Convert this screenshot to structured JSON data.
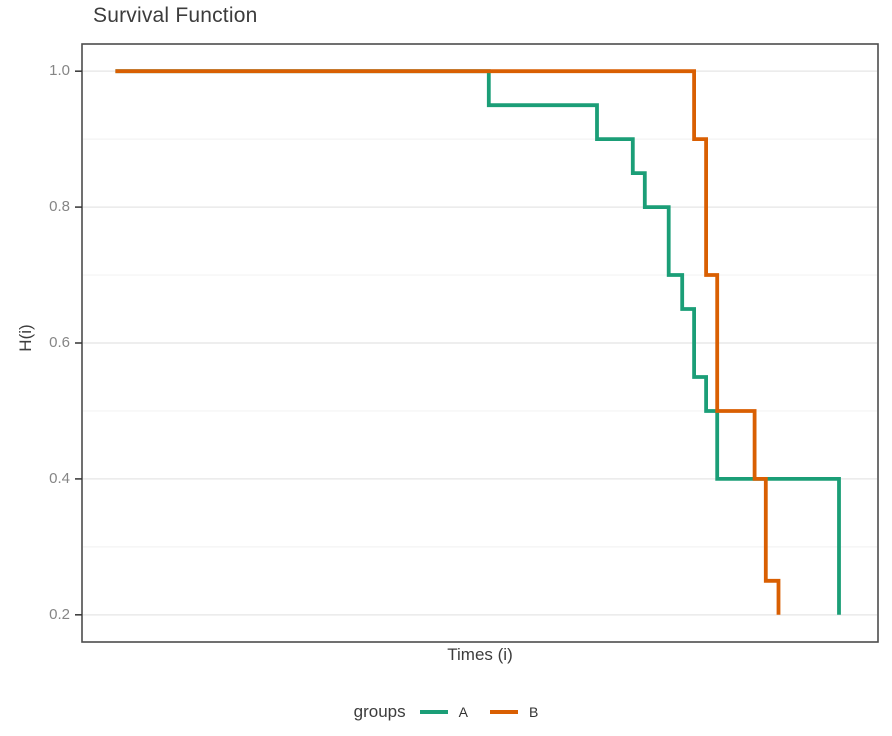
{
  "title": "Survival Function",
  "axes": {
    "x": {
      "label": "Times (i)",
      "tick_labels": []
    },
    "y": {
      "label": "H(i)",
      "ticks": [
        {
          "label": "0.2",
          "value": 0.2
        },
        {
          "label": "0.4",
          "value": 0.4
        },
        {
          "label": "0.6",
          "value": 0.6
        },
        {
          "label": "0.8",
          "value": 0.8
        },
        {
          "label": "1.0",
          "value": 1.0
        }
      ],
      "minor_gridlines": [
        0.3,
        0.5,
        0.7,
        0.9
      ],
      "range": [
        0.16,
        1.04
      ]
    }
  },
  "legend": {
    "title": "groups",
    "entries": [
      {
        "label": "A",
        "color": "#1b9e77"
      },
      {
        "label": "B",
        "color": "#d95f02"
      }
    ]
  },
  "chart_data": {
    "type": "line",
    "subtype": "step-survival-curve",
    "title": "Survival Function",
    "xlabel": "Times (i)",
    "ylabel": "H(i)",
    "ylim": [
      0.16,
      1.04
    ],
    "grid": "horizontal-only",
    "legend_position": "bottom",
    "x_note": "x axis has no tick marks or tick labels; step x values are fractions (0-1) of the panel width",
    "series": [
      {
        "name": "A",
        "color": "#1b9e77",
        "steps": [
          [
            0.042,
            1.0
          ],
          [
            0.511,
            0.95
          ],
          [
            0.647,
            0.9
          ],
          [
            0.692,
            0.85
          ],
          [
            0.707,
            0.8
          ],
          [
            0.737,
            0.7
          ],
          [
            0.754,
            0.65
          ],
          [
            0.769,
            0.55
          ],
          [
            0.784,
            0.5
          ],
          [
            0.798,
            0.4
          ],
          [
            0.951,
            0.2
          ]
        ]
      },
      {
        "name": "B",
        "color": "#d95f02",
        "steps": [
          [
            0.042,
            1.0
          ],
          [
            0.769,
            0.9
          ],
          [
            0.784,
            0.7
          ],
          [
            0.798,
            0.5
          ],
          [
            0.845,
            0.4
          ],
          [
            0.859,
            0.25
          ],
          [
            0.875,
            0.2
          ]
        ]
      }
    ]
  }
}
